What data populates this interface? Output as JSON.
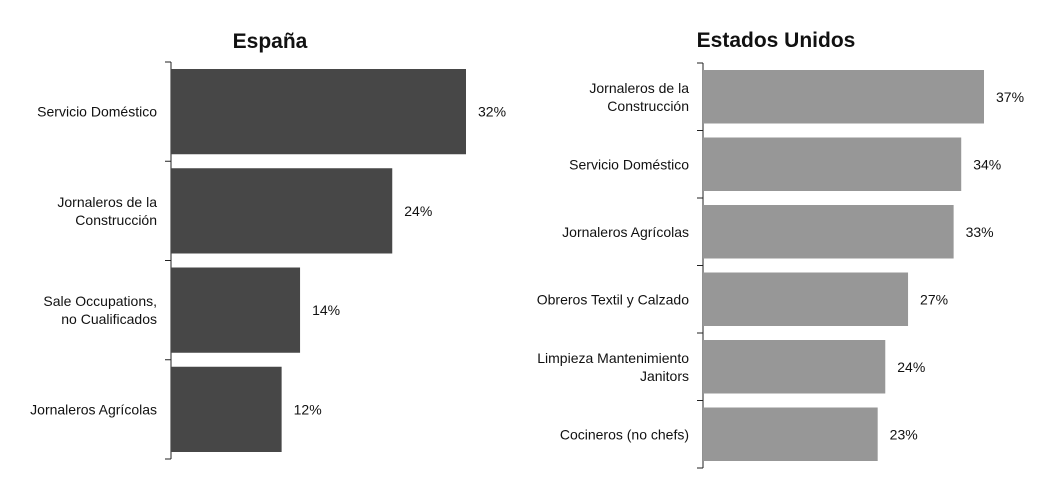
{
  "chart_data": [
    {
      "type": "bar",
      "orientation": "horizontal",
      "title": "España",
      "categories": [
        [
          "Servicio Doméstico"
        ],
        [
          "Jornaleros de la",
          "Construcción"
        ],
        [
          "Sale Occupations,",
          "no Cualificados"
        ],
        [
          "Jornaleros Agrícolas"
        ]
      ],
      "values": [
        32,
        24,
        14,
        12
      ],
      "labels": [
        "32%",
        "24%",
        "14%",
        "12%"
      ],
      "xlim": [
        0,
        37
      ],
      "bar_color": "#474747",
      "grid": false,
      "legend": "none"
    },
    {
      "type": "bar",
      "orientation": "horizontal",
      "title": "Estados Unidos",
      "categories": [
        [
          "Jornaleros de la",
          "Construcción"
        ],
        [
          "Servicio Doméstico"
        ],
        [
          "Jornaleros Agrícolas"
        ],
        [
          "Obreros Textil y Calzado"
        ],
        [
          "Limpieza Mantenimiento",
          "Janitors"
        ],
        [
          "Cocineros (no chefs)"
        ]
      ],
      "values": [
        37,
        34,
        33,
        27,
        24,
        23
      ],
      "labels": [
        "37%",
        "34%",
        "33%",
        "27%",
        "24%",
        "23%"
      ],
      "xlim": [
        0,
        37
      ],
      "bar_color": "#979797",
      "grid": false,
      "legend": "none"
    }
  ]
}
